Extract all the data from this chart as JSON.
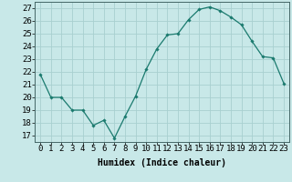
{
  "x": [
    0,
    1,
    2,
    3,
    4,
    5,
    6,
    7,
    8,
    9,
    10,
    11,
    12,
    13,
    14,
    15,
    16,
    17,
    18,
    19,
    20,
    21,
    22,
    23
  ],
  "y": [
    21.8,
    20.0,
    20.0,
    19.0,
    19.0,
    17.8,
    18.2,
    16.8,
    18.5,
    20.1,
    22.2,
    23.8,
    24.9,
    25.0,
    26.1,
    26.9,
    27.1,
    26.8,
    26.3,
    25.7,
    24.4,
    23.2,
    23.1,
    21.1
  ],
  "line_color": "#1a7a6e",
  "marker": "D",
  "marker_size": 1.8,
  "bg_color": "#c8e8e8",
  "grid_color": "#a8d0d0",
  "xlabel": "Humidex (Indice chaleur)",
  "ylabel_ticks": [
    17,
    18,
    19,
    20,
    21,
    22,
    23,
    24,
    25,
    26,
    27
  ],
  "xlim": [
    -0.5,
    23.5
  ],
  "ylim": [
    16.5,
    27.5
  ],
  "xlabel_fontsize": 7,
  "tick_fontsize": 6.5
}
